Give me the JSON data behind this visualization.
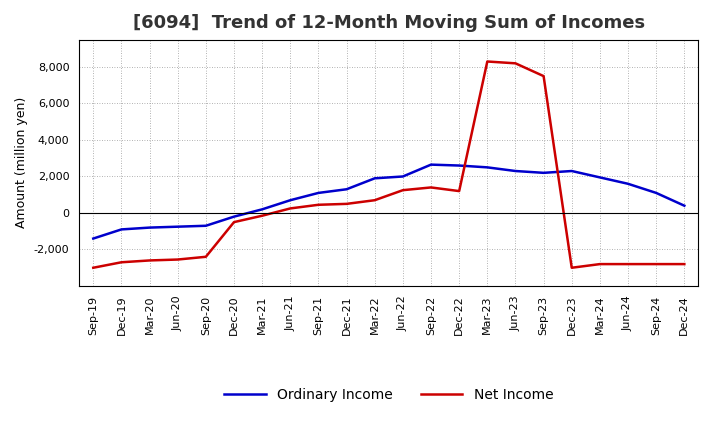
{
  "title": "[6094]  Trend of 12-Month Moving Sum of Incomes",
  "ylabel": "Amount (million yen)",
  "x_labels": [
    "Sep-19",
    "Dec-19",
    "Mar-20",
    "Jun-20",
    "Sep-20",
    "Dec-20",
    "Mar-21",
    "Jun-21",
    "Sep-21",
    "Dec-21",
    "Mar-22",
    "Jun-22",
    "Sep-22",
    "Dec-22",
    "Mar-23",
    "Jun-23",
    "Sep-23",
    "Dec-23",
    "Mar-24",
    "Jun-24",
    "Sep-24",
    "Dec-24"
  ],
  "ordinary_income": [
    -1400,
    -900,
    -800,
    -750,
    -700,
    -200,
    200,
    700,
    1100,
    1300,
    1900,
    2000,
    2650,
    2600,
    2500,
    2300,
    2200,
    2300,
    1950,
    1600,
    1100,
    400
  ],
  "net_income": [
    -3000,
    -2700,
    -2600,
    -2550,
    -2400,
    -500,
    -150,
    250,
    450,
    500,
    700,
    1250,
    1400,
    1200,
    8300,
    8200,
    7500,
    -3000,
    -2800,
    -2800,
    -2800,
    -2800
  ],
  "ylim": [
    -4000,
    9500
  ],
  "yticks": [
    -2000,
    0,
    2000,
    4000,
    6000,
    8000
  ],
  "ordinary_income_color": "#0000cc",
  "net_income_color": "#cc0000",
  "background_color": "#ffffff",
  "grid_color": "#999999",
  "title_fontsize": 13,
  "title_color": "#333333",
  "legend_fontsize": 10,
  "axis_label_fontsize": 9,
  "tick_fontsize": 8
}
